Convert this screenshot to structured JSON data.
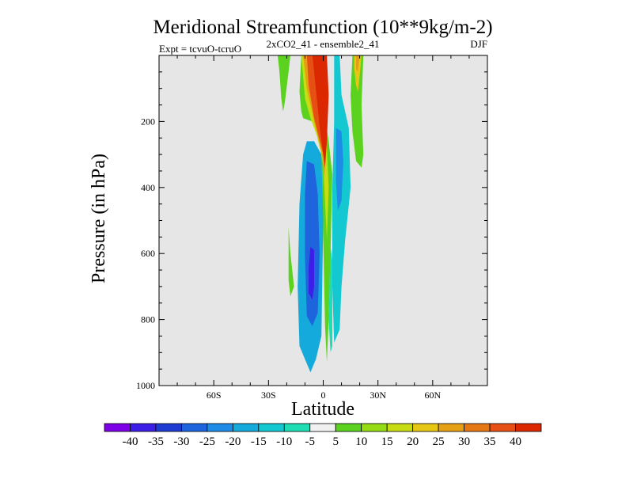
{
  "chart_data": {
    "type": "heatmap",
    "title": "Meridional Streamfunction (10**9kg/m-2)",
    "subtitle_center": "2xCO2_41 - ensemble2_41",
    "subtitle_left": "Expt = tcvuO-tcruO",
    "subtitle_right": "DJF",
    "xlabel": "Latitude",
    "ylabel": "Pressure (in hPa)",
    "xlim": [
      -90,
      90
    ],
    "ylim": [
      0,
      1000
    ],
    "y_inverted": true,
    "x_ticks": [
      {
        "value": -60,
        "label": "60S"
      },
      {
        "value": -30,
        "label": "30S"
      },
      {
        "value": 0,
        "label": "0"
      },
      {
        "value": 30,
        "label": "30N"
      },
      {
        "value": 60,
        "label": "60N"
      }
    ],
    "y_ticks": [
      {
        "value": 200,
        "label": "200"
      },
      {
        "value": 400,
        "label": "400"
      },
      {
        "value": 600,
        "label": "600"
      },
      {
        "value": 800,
        "label": "800"
      },
      {
        "value": 1000,
        "label": "1000"
      }
    ],
    "background_color": "#e6e6e6",
    "colorbar": {
      "labels": [
        "-40",
        "-35",
        "-30",
        "-25",
        "-20",
        "-15",
        "-10",
        "-5",
        "5",
        "10",
        "15",
        "20",
        "25",
        "30",
        "35",
        "40"
      ],
      "colors": [
        "#7d00e6",
        "#3c1ee6",
        "#1e3cd2",
        "#1e64dc",
        "#1e8ce6",
        "#14aadc",
        "#14c8d2",
        "#1edcb4",
        "#f0f0f0",
        "#5ad21e",
        "#96dc14",
        "#c8dc14",
        "#e6c814",
        "#e6a014",
        "#e67814",
        "#e65014",
        "#dc2800"
      ]
    },
    "contours": [
      {
        "name": "upper-nh-green-left",
        "level": 5,
        "color": "#5ad21e",
        "points": [
          [
            -25,
            0
          ],
          [
            -18,
            0
          ],
          [
            -19,
            50
          ],
          [
            -21,
            140
          ],
          [
            -22,
            170
          ],
          [
            -23,
            130
          ],
          [
            -24,
            50
          ]
        ]
      },
      {
        "name": "upper-eq-green",
        "level": 5,
        "color": "#5ad21e",
        "points": [
          [
            -12,
            0
          ],
          [
            -3,
            0
          ],
          [
            0,
            150
          ],
          [
            3,
            260
          ],
          [
            5,
            360
          ],
          [
            4,
            600
          ],
          [
            3,
            800
          ],
          [
            2,
            930
          ],
          [
            1,
            820
          ],
          [
            0,
            560
          ],
          [
            -1,
            300
          ],
          [
            -4,
            230
          ],
          [
            -6,
            200
          ],
          [
            -11,
            190
          ],
          [
            -12,
            170
          ],
          [
            -13,
            110
          ]
        ]
      },
      {
        "name": "upper-eq-yellow",
        "level": 15,
        "color": "#c8dc14",
        "points": [
          [
            -12,
            0
          ],
          [
            -3,
            0
          ],
          [
            0,
            140
          ],
          [
            2,
            280
          ],
          [
            3,
            400
          ],
          [
            2,
            560
          ],
          [
            0,
            330
          ],
          [
            -3,
            250
          ],
          [
            -7,
            190
          ],
          [
            -10,
            130
          ]
        ]
      },
      {
        "name": "upper-eq-orange",
        "level": 25,
        "color": "#e6a014",
        "points": [
          [
            -11,
            0
          ],
          [
            -3,
            0
          ],
          [
            0,
            120
          ],
          [
            1,
            280
          ],
          [
            1,
            370
          ],
          [
            -1,
            290
          ],
          [
            -5,
            200
          ],
          [
            -9,
            100
          ]
        ]
      },
      {
        "name": "upper-eq-red",
        "level": 40,
        "color": "#dc2800",
        "points": [
          [
            -6,
            0
          ],
          [
            2,
            0
          ],
          [
            3,
            120
          ],
          [
            2,
            260
          ],
          [
            1,
            340
          ],
          [
            -2,
            220
          ],
          [
            -4,
            110
          ]
        ]
      },
      {
        "name": "upper-eq-redorange",
        "level": 35,
        "color": "#e65014",
        "points": [
          [
            -9,
            0
          ],
          [
            -6,
            0
          ],
          [
            -4,
            110
          ],
          [
            -2,
            220
          ],
          [
            1,
            340
          ],
          [
            0,
            300
          ],
          [
            -5,
            190
          ],
          [
            -8,
            90
          ]
        ]
      },
      {
        "name": "sh-blue-lobe",
        "level": -15,
        "color": "#14aadc",
        "points": [
          [
            -9,
            260
          ],
          [
            -5,
            260
          ],
          [
            -1,
            300
          ],
          [
            0,
            500
          ],
          [
            -1,
            850
          ],
          [
            -4,
            920
          ],
          [
            -7,
            960
          ],
          [
            -10,
            920
          ],
          [
            -13,
            880
          ],
          [
            -14,
            700
          ],
          [
            -13,
            450
          ],
          [
            -11,
            300
          ]
        ]
      },
      {
        "name": "sh-blue-core",
        "level": -25,
        "color": "#1e64dc",
        "points": [
          [
            -9,
            320
          ],
          [
            -5,
            330
          ],
          [
            -3,
            420
          ],
          [
            -2,
            600
          ],
          [
            -3,
            780
          ],
          [
            -6,
            820
          ],
          [
            -9,
            790
          ],
          [
            -10,
            600
          ],
          [
            -10,
            420
          ]
        ]
      },
      {
        "name": "sh-blue-deep",
        "level": -35,
        "color": "#3c1ee6",
        "points": [
          [
            -7,
            580
          ],
          [
            -5,
            590
          ],
          [
            -5,
            700
          ],
          [
            -6,
            740
          ],
          [
            -8,
            720
          ],
          [
            -8,
            640
          ]
        ]
      },
      {
        "name": "nh-cyan-lobe",
        "level": -10,
        "color": "#14c8d2",
        "points": [
          [
            6,
            0
          ],
          [
            9,
            0
          ],
          [
            10,
            120
          ],
          [
            14,
            220
          ],
          [
            15,
            400
          ],
          [
            12,
            560
          ],
          [
            10,
            700
          ],
          [
            9,
            830
          ],
          [
            6,
            870
          ],
          [
            5,
            700
          ],
          [
            5,
            400
          ],
          [
            6,
            200
          ]
        ]
      },
      {
        "name": "nh-blue-core",
        "level": -20,
        "color": "#1e8ce6",
        "points": [
          [
            7,
            220
          ],
          [
            10,
            230
          ],
          [
            11,
            320
          ],
          [
            10,
            440
          ],
          [
            8,
            470
          ],
          [
            7,
            380
          ]
        ]
      },
      {
        "name": "nh-upper-green",
        "level": 5,
        "color": "#5ad21e",
        "points": [
          [
            16,
            0
          ],
          [
            22,
            0
          ],
          [
            21,
            150
          ],
          [
            22,
            300
          ],
          [
            21,
            340
          ],
          [
            18,
            320
          ],
          [
            16,
            230
          ],
          [
            15,
            120
          ]
        ]
      },
      {
        "name": "nh-upper-yellow",
        "level": 20,
        "color": "#e6c814",
        "points": [
          [
            17,
            0
          ],
          [
            21,
            0
          ],
          [
            20,
            60
          ],
          [
            19,
            110
          ],
          [
            18,
            90
          ],
          [
            17,
            40
          ]
        ]
      },
      {
        "name": "nh-upper-orange",
        "level": 30,
        "color": "#e69c14",
        "points": [
          [
            18,
            0
          ],
          [
            20,
            0
          ],
          [
            19,
            50
          ],
          [
            18,
            40
          ]
        ]
      },
      {
        "name": "sh-small-green",
        "level": 5,
        "color": "#5ad21e",
        "points": [
          [
            -19,
            520
          ],
          [
            -18,
            600
          ],
          [
            -16,
            700
          ],
          [
            -18,
            730
          ],
          [
            -19,
            680
          ],
          [
            -19,
            600
          ]
        ]
      },
      {
        "name": "eq-thin-cyan",
        "level": -5,
        "color": "#1edcb4",
        "points": [
          [
            4,
            580
          ],
          [
            5,
            620
          ],
          [
            5,
            880
          ],
          [
            4,
            900
          ],
          [
            3,
            800
          ]
        ]
      }
    ]
  }
}
